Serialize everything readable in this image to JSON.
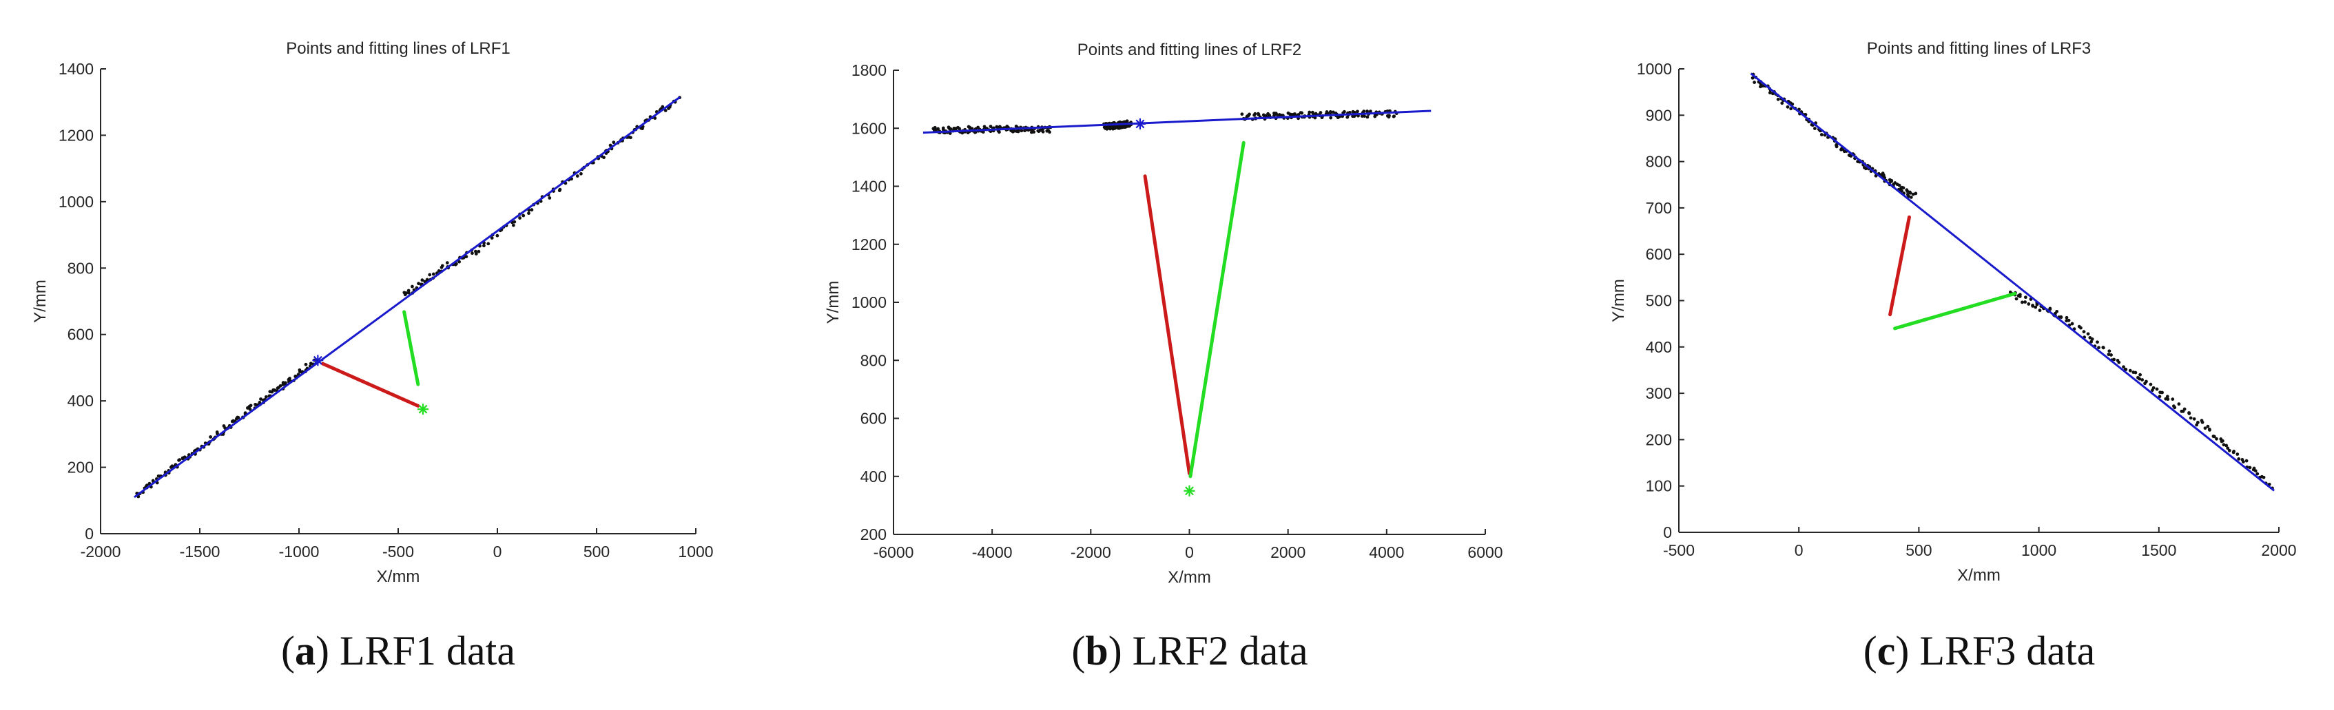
{
  "figure": {
    "colors": {
      "points": "#111111",
      "fit_line": "#1a1acd",
      "red_segment": "#cc1a1a",
      "green_segment": "#22dd22",
      "text": "#262626",
      "axes": "#262626"
    }
  },
  "chart_data": [
    {
      "id": "lrf1",
      "type": "scatter",
      "title": "Points and fitting lines of LRF1",
      "xlabel": "X/mm",
      "ylabel": "Y/mm",
      "xlim": [
        -2000,
        1000
      ],
      "ylim": [
        0,
        1400
      ],
      "xticks": [
        -2000,
        -1500,
        -1000,
        -500,
        0,
        500,
        1000
      ],
      "yticks": [
        0,
        200,
        400,
        600,
        800,
        1000,
        1200,
        1400
      ],
      "caption": {
        "letter": "a",
        "text": " LRF1 data"
      },
      "fit_line": {
        "x": [
          -1830,
          920
        ],
        "y": [
          110,
          1315
        ]
      },
      "scan_points": [
        {
          "x": [
            -1820,
            -1500,
            -1200,
            -920
          ],
          "y": [
            118,
            258,
            395,
            520
          ]
        },
        {
          "x": [
            -470,
            -300,
            -100,
            200,
            500,
            700,
            910
          ],
          "y": [
            715,
            790,
            855,
            990,
            1130,
            1215,
            1310
          ]
        }
      ],
      "red_segment": {
        "x": [
          -880,
          -400
        ],
        "y": [
          512,
          385
        ]
      },
      "green_segment": {
        "x": [
          -470,
          -400
        ],
        "y": [
          668,
          450
        ]
      },
      "markers": [
        {
          "x": -905,
          "y": 522,
          "color": "blue"
        },
        {
          "x": -375,
          "y": 375,
          "color": "green"
        }
      ]
    },
    {
      "id": "lrf2",
      "type": "scatter",
      "title": "Points and fitting lines of LRF2",
      "xlabel": "X/mm",
      "ylabel": "Y/mm",
      "xlim": [
        -6000,
        6000
      ],
      "ylim": [
        200,
        1800
      ],
      "xticks": [
        -6000,
        -4000,
        -2000,
        0,
        2000,
        4000,
        6000
      ],
      "yticks": [
        200,
        400,
        600,
        800,
        1000,
        1200,
        1400,
        1600,
        1800
      ],
      "caption": {
        "letter": "b",
        "text": " LRF2 data"
      },
      "fit_line": {
        "x": [
          -5400,
          4900
        ],
        "y": [
          1585,
          1660
        ]
      },
      "scan_points": [
        {
          "x": [
            -5200,
            -4000,
            -2800
          ],
          "y": [
            1592,
            1597,
            1595
          ]
        },
        {
          "x": [
            -1700,
            -1200
          ],
          "y": [
            1605,
            1615
          ]
        },
        {
          "x": [
            1100,
            2500,
            4200
          ],
          "y": [
            1640,
            1645,
            1650
          ]
        }
      ],
      "red_segment": {
        "x": [
          -900,
          0
        ],
        "y": [
          1435,
          410
        ]
      },
      "green_segment": {
        "x": [
          20,
          1100
        ],
        "y": [
          400,
          1550
        ]
      },
      "markers": [
        {
          "x": -1000,
          "y": 1615,
          "color": "blue"
        },
        {
          "x": 0,
          "y": 350,
          "color": "green"
        }
      ]
    },
    {
      "id": "lrf3",
      "type": "scatter",
      "title": "Points and fitting lines of LRF3",
      "xlabel": "X/mm",
      "ylabel": "Y/mm",
      "xlim": [
        -500,
        2000
      ],
      "ylim": [
        0,
        1000
      ],
      "xticks": [
        -500,
        0,
        500,
        1000,
        1500,
        2000
      ],
      "yticks": [
        0,
        100,
        200,
        300,
        400,
        500,
        600,
        700,
        800,
        900,
        1000
      ],
      "caption": {
        "letter": "c",
        "text": " LRF3 data"
      },
      "fit_line": {
        "x": [
          -200,
          1980
        ],
        "y": [
          990,
          90
        ]
      },
      "scan_points": [
        {
          "x": [
            -200,
            0,
            200,
            350,
            480
          ],
          "y": [
            985,
            905,
            820,
            765,
            725
          ]
        },
        {
          "x": [
            880,
            1100,
            1400,
            1700,
            1970
          ],
          "y": [
            515,
            465,
            340,
            225,
            100
          ]
        }
      ],
      "red_segment": {
        "x": [
          380,
          460
        ],
        "y": [
          470,
          680
        ]
      },
      "green_segment": {
        "x": [
          400,
          900
        ],
        "y": [
          440,
          515
        ]
      },
      "markers": []
    }
  ]
}
